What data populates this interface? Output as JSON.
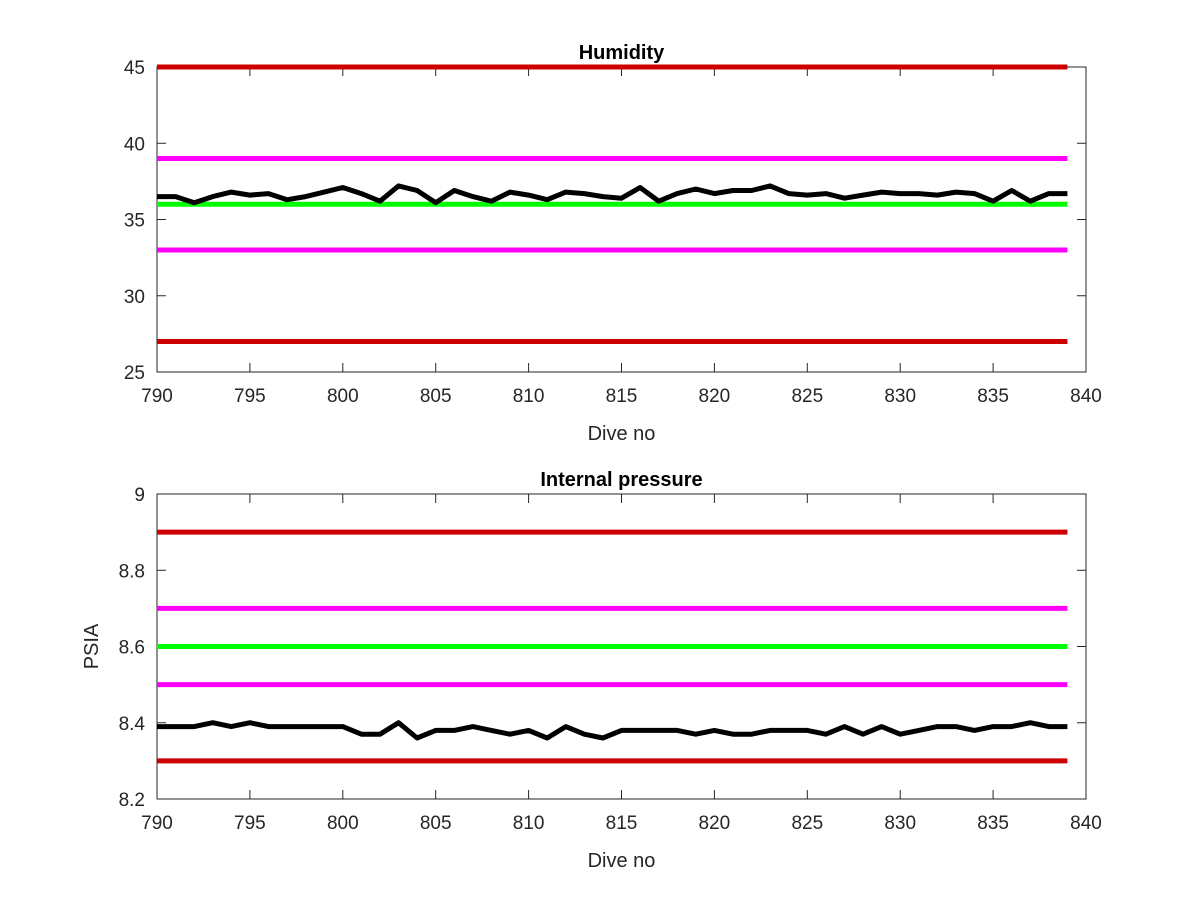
{
  "chart_data": [
    {
      "type": "line",
      "title": "Humidity",
      "xlabel": "Dive no",
      "ylabel": "",
      "xlim": [
        790,
        840
      ],
      "ylim": [
        25,
        45
      ],
      "xticks": [
        790,
        795,
        800,
        805,
        810,
        815,
        820,
        825,
        830,
        835,
        840
      ],
      "yticks": [
        25,
        30,
        35,
        40,
        45
      ],
      "grid": false,
      "legend": "none",
      "reference_lines": [
        {
          "y": 45,
          "color": "#cc0000"
        },
        {
          "y": 39,
          "color": "#ff00ff"
        },
        {
          "y": 36,
          "color": "#00ff00"
        },
        {
          "y": 33,
          "color": "#ff00ff"
        },
        {
          "y": 27,
          "color": "#cc0000"
        }
      ],
      "series": [
        {
          "color": "#000000",
          "x": [
            790,
            791,
            792,
            793,
            794,
            795,
            796,
            797,
            798,
            799,
            800,
            801,
            802,
            803,
            804,
            805,
            806,
            807,
            808,
            809,
            810,
            811,
            812,
            813,
            814,
            815,
            816,
            817,
            818,
            819,
            820,
            821,
            822,
            823,
            824,
            825,
            826,
            827,
            828,
            829,
            830,
            831,
            832,
            833,
            834,
            835,
            836,
            837,
            838,
            839
          ],
          "values": [
            36.5,
            36.5,
            36.1,
            36.5,
            36.8,
            36.6,
            36.7,
            36.3,
            36.5,
            36.8,
            37.1,
            36.7,
            36.2,
            37.2,
            36.9,
            36.1,
            36.9,
            36.5,
            36.2,
            36.8,
            36.6,
            36.3,
            36.8,
            36.7,
            36.5,
            36.4,
            37.1,
            36.2,
            36.7,
            37.0,
            36.7,
            36.9,
            36.9,
            37.2,
            36.7,
            36.6,
            36.7,
            36.4,
            36.6,
            36.8,
            36.7,
            36.7,
            36.6,
            36.8,
            36.7,
            36.2,
            36.9,
            36.2,
            36.7,
            36.7
          ]
        }
      ]
    },
    {
      "type": "line",
      "title": "Internal pressure",
      "xlabel": "Dive no",
      "ylabel": "PSIA",
      "xlim": [
        790,
        840
      ],
      "ylim": [
        8.2,
        9
      ],
      "xticks": [
        790,
        795,
        800,
        805,
        810,
        815,
        820,
        825,
        830,
        835,
        840
      ],
      "yticks": [
        8.2,
        8.4,
        8.6,
        8.8,
        9
      ],
      "ytick_labels": [
        "8.2",
        "8.4",
        "8.6",
        "8.8",
        "9"
      ],
      "grid": false,
      "legend": "none",
      "reference_lines": [
        {
          "y": 8.9,
          "color": "#cc0000"
        },
        {
          "y": 8.7,
          "color": "#ff00ff"
        },
        {
          "y": 8.6,
          "color": "#00ff00"
        },
        {
          "y": 8.5,
          "color": "#ff00ff"
        },
        {
          "y": 8.3,
          "color": "#cc0000"
        }
      ],
      "series": [
        {
          "color": "#000000",
          "x": [
            790,
            791,
            792,
            793,
            794,
            795,
            796,
            797,
            798,
            799,
            800,
            801,
            802,
            803,
            804,
            805,
            806,
            807,
            808,
            809,
            810,
            811,
            812,
            813,
            814,
            815,
            816,
            817,
            818,
            819,
            820,
            821,
            822,
            823,
            824,
            825,
            826,
            827,
            828,
            829,
            830,
            831,
            832,
            833,
            834,
            835,
            836,
            837,
            838,
            839
          ],
          "values": [
            8.39,
            8.39,
            8.39,
            8.4,
            8.39,
            8.4,
            8.39,
            8.39,
            8.39,
            8.39,
            8.39,
            8.37,
            8.37,
            8.4,
            8.36,
            8.38,
            8.38,
            8.39,
            8.38,
            8.37,
            8.38,
            8.36,
            8.39,
            8.37,
            8.36,
            8.38,
            8.38,
            8.38,
            8.38,
            8.37,
            8.38,
            8.37,
            8.37,
            8.38,
            8.38,
            8.38,
            8.37,
            8.39,
            8.37,
            8.39,
            8.37,
            8.38,
            8.39,
            8.39,
            8.38,
            8.39,
            8.39,
            8.4,
            8.39,
            8.39
          ]
        }
      ]
    }
  ]
}
